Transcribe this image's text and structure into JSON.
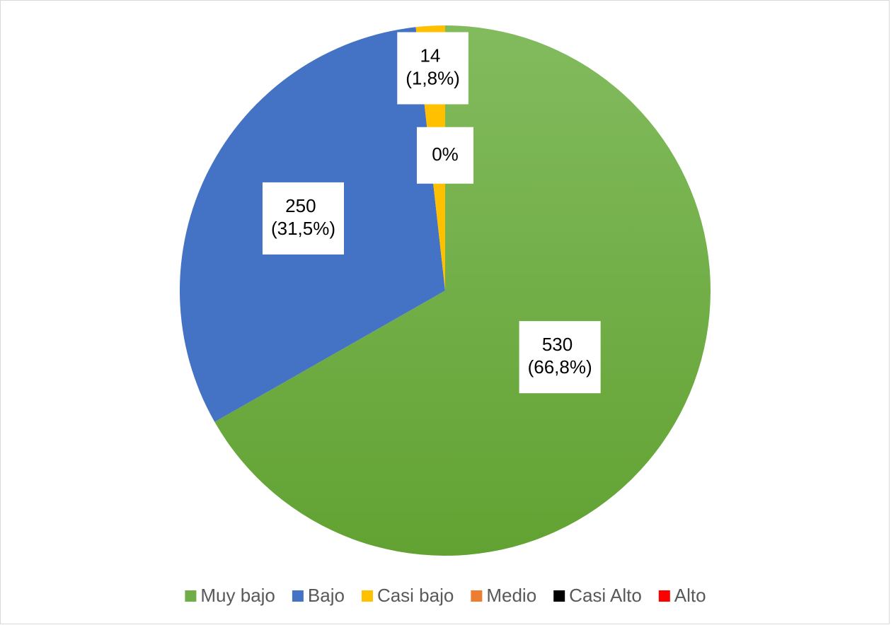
{
  "chart_data": {
    "type": "pie",
    "categories": [
      "Muy bajo",
      "Bajo",
      "Casi bajo",
      "Medio",
      "Casi Alto",
      "Alto"
    ],
    "values": [
      530,
      250,
      14,
      0,
      0,
      0
    ],
    "value_labels": [
      "530 (66,8%)",
      "250 (31,5%)",
      "14 (1,8%)",
      "0%",
      null,
      null
    ],
    "colors": [
      "#70ad47",
      "#4472c4",
      "#ffc000",
      "#ed7d31",
      "#000000",
      "#ff0000"
    ],
    "legend": "bottom"
  }
}
